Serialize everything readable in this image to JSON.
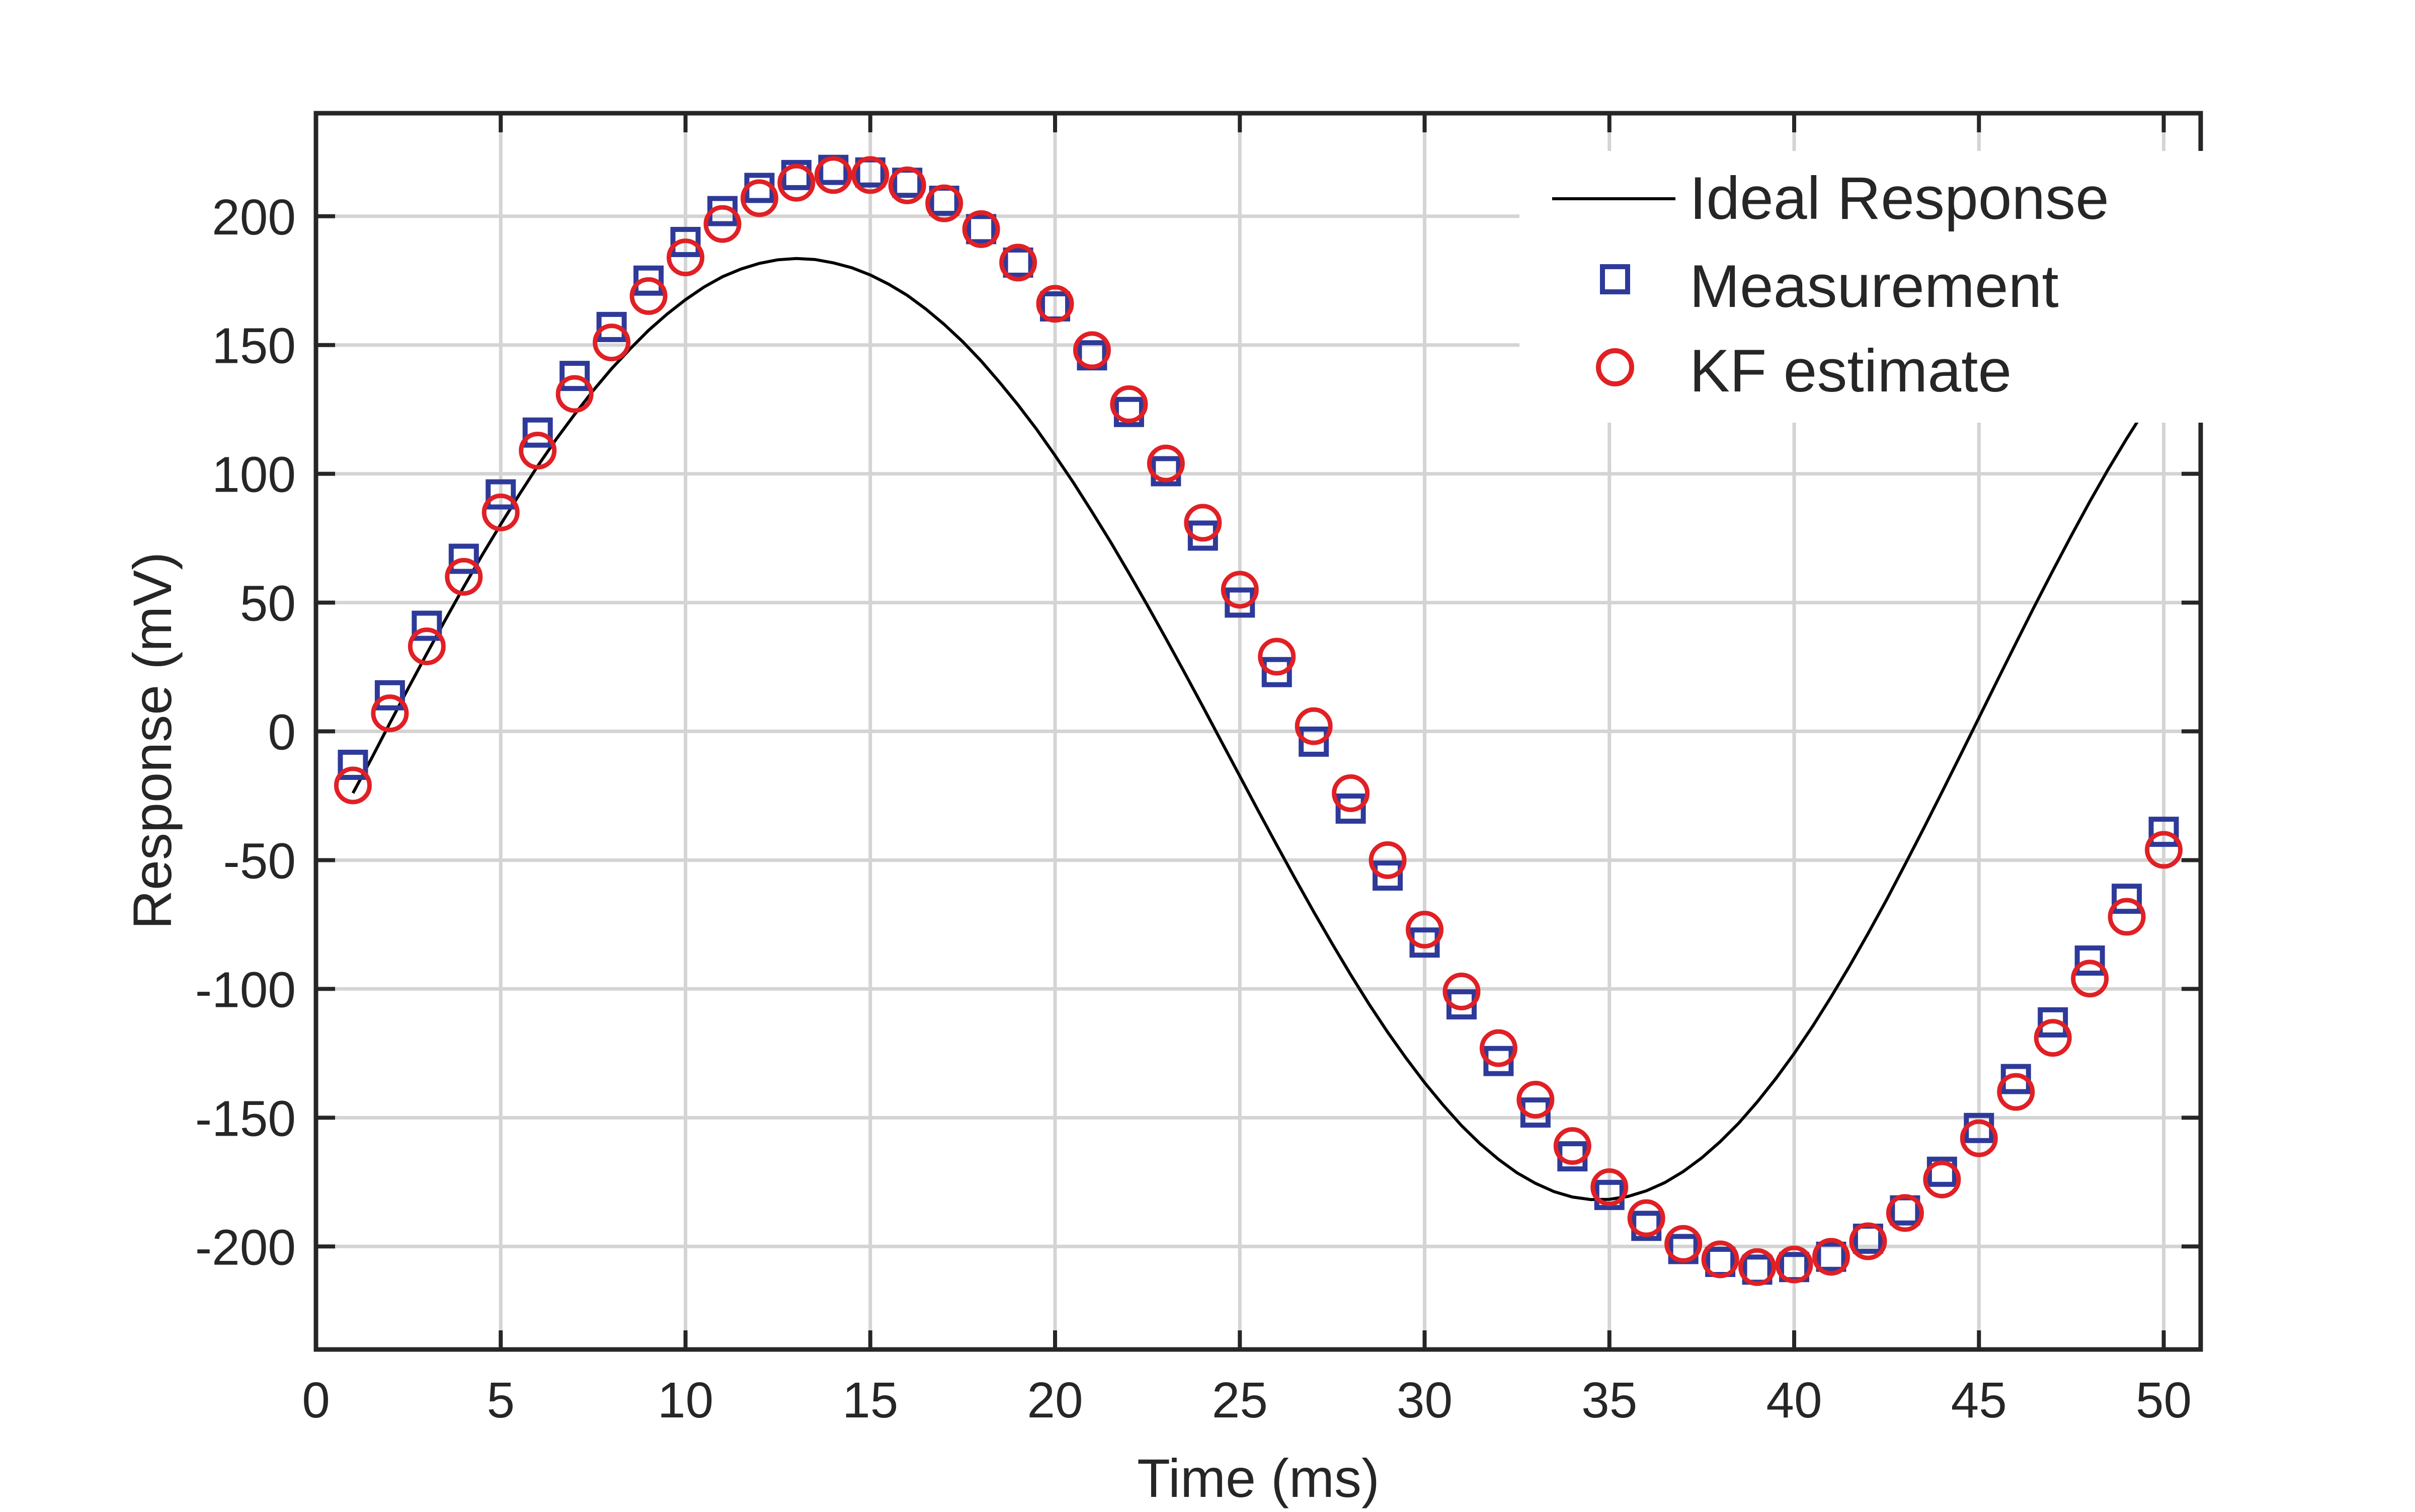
{
  "chart_data": {
    "type": "line",
    "title": "",
    "xlabel": "Time (ms)",
    "ylabel": "Response (mV)",
    "xlim": [
      0,
      51
    ],
    "ylim": [
      -240,
      240
    ],
    "xticks": [
      0,
      5,
      10,
      15,
      20,
      25,
      30,
      35,
      40,
      45,
      50
    ],
    "yticks": [
      -200,
      -150,
      -100,
      -50,
      0,
      50,
      100,
      150,
      200
    ],
    "grid": true,
    "legend_position": "top-right",
    "colors": {
      "ideal": "#000000",
      "measurement": "#2E3A99",
      "kf": "#E02025",
      "grid": "#d4d4d4",
      "axes": "#262626"
    },
    "series": [
      {
        "name": "Ideal Response",
        "style": "line",
        "x": [
          1,
          1.5,
          2,
          2.5,
          3,
          3.5,
          4,
          4.5,
          5,
          5.5,
          6,
          6.5,
          7,
          7.5,
          8,
          8.5,
          9,
          9.5,
          10,
          10.5,
          11,
          11.5,
          12,
          12.5,
          13,
          13.5,
          14,
          14.5,
          15,
          15.5,
          16,
          16.5,
          17,
          17.5,
          18,
          18.5,
          19,
          19.5,
          20,
          20.5,
          21,
          21.5,
          22,
          22.5,
          23,
          23.5,
          24,
          24.5,
          25,
          25.5,
          26,
          26.5,
          27,
          27.5,
          28,
          28.5,
          29,
          29.5,
          30,
          30.5,
          31,
          31.5,
          32,
          32.5,
          33,
          33.5,
          34,
          34.5,
          35,
          35.5,
          36,
          36.5,
          37,
          37.5,
          38,
          38.5,
          39,
          39.5,
          40,
          40.5,
          41,
          41.5,
          42,
          42.5,
          43,
          43.5,
          44,
          44.5,
          45,
          45.5,
          46,
          46.5,
          47,
          47.5,
          48,
          48.5,
          49,
          49.5,
          50
        ],
        "y": [
          -24.0,
          -10.6,
          3.2,
          16.8,
          30.2,
          43.3,
          56.1,
          68.5,
          80.4,
          91.9,
          103.0,
          113.4,
          123.1,
          132.3,
          140.8,
          148.5,
          155.7,
          162.0,
          167.6,
          172.5,
          176.5,
          179.5,
          181.7,
          183.1,
          183.6,
          183.2,
          181.9,
          180.0,
          177.2,
          173.6,
          169.3,
          164.0,
          158.0,
          151.3,
          143.8,
          135.5,
          126.7,
          117.3,
          107.1,
          96.5,
          85.2,
          73.6,
          61.4,
          48.9,
          36.0,
          22.9,
          9.6,
          -3.9,
          -17.4,
          -30.9,
          -44.2,
          -57.3,
          -70.1,
          -82.5,
          -94.5,
          -106.0,
          -116.8,
          -126.9,
          -136.4,
          -145.1,
          -153.1,
          -160.1,
          -166.2,
          -171.4,
          -175.5,
          -178.7,
          -180.8,
          -181.8,
          -181.7,
          -180.6,
          -178.4,
          -175.2,
          -170.9,
          -165.6,
          -159.3,
          -152.1,
          -143.9,
          -134.9,
          -125.1,
          -114.5,
          -103.1,
          -91.1,
          -78.5,
          -65.4,
          -51.7,
          -37.8,
          -23.6,
          -9.2,
          5.3,
          19.8,
          34.2,
          48.5,
          62.4,
          76.0,
          89.2,
          101.8,
          113.7,
          125.0,
          135.5
        ]
      },
      {
        "name": "Measurement",
        "style": "square",
        "x": [
          1,
          2,
          3,
          4,
          5,
          6,
          7,
          8,
          9,
          10,
          11,
          12,
          13,
          14,
          15,
          16,
          17,
          18,
          19,
          20,
          21,
          22,
          23,
          24,
          25,
          26,
          27,
          28,
          29,
          30,
          31,
          32,
          33,
          34,
          35,
          36,
          37,
          38,
          39,
          40,
          41,
          42,
          43,
          44,
          45,
          46,
          47,
          48,
          49,
          50
        ],
        "y": [
          -13,
          14,
          41,
          67,
          92,
          116,
          138,
          157,
          175,
          190,
          202,
          211,
          216,
          218,
          217,
          213,
          206,
          195,
          182,
          165,
          146,
          124,
          101,
          76,
          50,
          23,
          -4,
          -30,
          -56,
          -82,
          -106,
          -128,
          -148,
          -165,
          -180,
          -192,
          -201,
          -206,
          -209,
          -208,
          -204,
          -197,
          -186,
          -171,
          -154,
          -135,
          -113,
          -89,
          -65,
          -39
        ]
      },
      {
        "name": "KF estimate",
        "style": "circle",
        "x": [
          1,
          2,
          3,
          4,
          5,
          6,
          7,
          8,
          9,
          10,
          11,
          12,
          13,
          14,
          15,
          16,
          17,
          18,
          19,
          20,
          21,
          22,
          23,
          24,
          25,
          26,
          27,
          28,
          29,
          30,
          31,
          32,
          33,
          34,
          35,
          36,
          37,
          38,
          39,
          40,
          41,
          42,
          43,
          44,
          45,
          46,
          47,
          48,
          49,
          50
        ],
        "y": [
          -21,
          7,
          33,
          60,
          85,
          109,
          131,
          151,
          169,
          184,
          197,
          207,
          213,
          216,
          216,
          212,
          205,
          195,
          182,
          166,
          148,
          127,
          104,
          81,
          55,
          29,
          2,
          -24,
          -50,
          -77,
          -101,
          -123,
          -143,
          -161,
          -177,
          -189,
          -199,
          -205,
          -208,
          -207,
          -204,
          -198,
          -187,
          -174,
          -158,
          -140,
          -119,
          -96,
          -72,
          -46
        ]
      }
    ]
  }
}
